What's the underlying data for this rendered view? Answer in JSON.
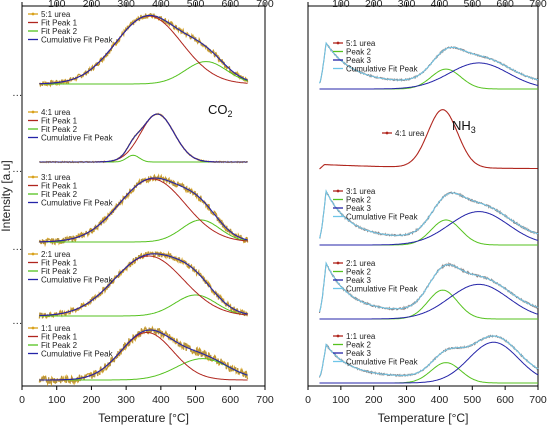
{
  "chart_data": [
    {
      "type": "line",
      "panel": "left",
      "xlabel": "Temperature [°C]",
      "ylabel": "Intensity [a.u]",
      "xlim": [
        0,
        700
      ],
      "xticks": [
        0,
        100,
        200,
        300,
        400,
        500,
        600,
        700
      ],
      "xtick_labels": [
        "0",
        "100",
        "200",
        "300",
        "400",
        "500",
        "600",
        "700"
      ],
      "annotation": {
        "main": "CO",
        "sub": "2"
      },
      "y_break_label": "…",
      "grid": false,
      "legend_position": "top-left of each subpanel",
      "colors": {
        "data": "#d9a21b",
        "peak1": "#b0261e",
        "peak2": "#55c21f",
        "cumulative": "#2424a8",
        "data_thin": "#7f7f7f"
      },
      "subpanels": [
        {
          "legend": [
            "5:1 urea",
            "Fit Peak 1",
            "Fit Peak 2",
            "Cumulative Fit Peak"
          ],
          "x_range": [
            50,
            650
          ],
          "peak1": {
            "center": 365,
            "height": 1.0,
            "width": 95
          },
          "peak2": {
            "center": 530,
            "height": 0.33,
            "width": 60
          },
          "noise": 0.04
        },
        {
          "legend": [
            "4:1 urea",
            "Fit Peak 1",
            "Fit Peak 2",
            "Cumulative Fit Peak"
          ],
          "x_range": [
            50,
            650
          ],
          "peak1": {
            "center": 390,
            "height": 1.0,
            "width": 48
          },
          "peak2": {
            "center": 320,
            "height": 0.14,
            "width": 18
          },
          "noise": 0.01
        },
        {
          "legend": [
            "3:1 urea",
            "Fit Peak 1",
            "Fit Peak 2",
            "Cumulative Fit Peak"
          ],
          "x_range": [
            50,
            650
          ],
          "peak1": {
            "center": 375,
            "height": 1.0,
            "width": 95
          },
          "peak2": {
            "center": 515,
            "height": 0.35,
            "width": 55
          },
          "noise": 0.05
        },
        {
          "legend": [
            "2:1 urea",
            "Fit Peak 1",
            "Fit Peak 2",
            "Cumulative Fit Peak"
          ],
          "x_range": [
            50,
            650
          ],
          "peak1": {
            "center": 365,
            "height": 1.0,
            "width": 100
          },
          "peak2": {
            "center": 500,
            "height": 0.35,
            "width": 60
          },
          "noise": 0.05
        },
        {
          "legend": [
            "1:1 urea",
            "Fit Peak 1",
            "Fit Peak 2",
            "Cumulative Fit Peak"
          ],
          "x_range": [
            50,
            650
          ],
          "peak1": {
            "center": 360,
            "height": 1.0,
            "width": 75
          },
          "peak2": {
            "center": 520,
            "height": 0.45,
            "width": 75
          },
          "noise": 0.08
        }
      ]
    },
    {
      "type": "line",
      "panel": "right",
      "xlabel": "Temperature [°C]",
      "ylabel": "",
      "xlim": [
        0,
        700
      ],
      "xticks": [
        0,
        100,
        200,
        300,
        400,
        500,
        600,
        700
      ],
      "xtick_labels": [
        "0",
        "100",
        "200",
        "300",
        "400",
        "500",
        "600",
        "700"
      ],
      "annotation": {
        "main": "NH",
        "sub": "3"
      },
      "grid": false,
      "legend_position": "top-left of each subpanel",
      "colors": {
        "data": "#b0261e",
        "peak2": "#55c21f",
        "peak3": "#2424a8",
        "cumulative": "#6fc6e8",
        "data_thin": "#8a8a8a"
      },
      "subpanels": [
        {
          "legend": [
            "5:1 urea",
            "Peak 2",
            "Peak 3",
            "Cumulative Fit Peak"
          ],
          "x_range": [
            35,
            700
          ],
          "peak1": {
            "center": 55,
            "height": 1.0,
            "width": 80
          },
          "peak2": {
            "center": 420,
            "height": 0.42,
            "width": 45
          },
          "peak3": {
            "center": 520,
            "height": 0.55,
            "width": 90
          }
        },
        {
          "legend": [
            "4:1 urea"
          ],
          "x_range": [
            35,
            700
          ],
          "peak1": {
            "center": 410,
            "height": 1.0,
            "width": 45
          },
          "baseline": 0.08
        },
        {
          "legend": [
            "3:1 urea",
            "Peak 2",
            "Peak 3",
            "Cumulative Fit Peak"
          ],
          "x_range": [
            35,
            700
          ],
          "peak1": {
            "center": 55,
            "height": 1.0,
            "width": 70
          },
          "peak2": {
            "center": 420,
            "height": 0.45,
            "width": 45
          },
          "peak3": {
            "center": 520,
            "height": 0.6,
            "width": 90
          }
        },
        {
          "legend": [
            "2:1 urea",
            "Peak 2",
            "Peak 3",
            "Cumulative Fit Peak"
          ],
          "x_range": [
            35,
            700
          ],
          "peak1": {
            "center": 55,
            "height": 1.0,
            "width": 70
          },
          "peak2": {
            "center": 410,
            "height": 0.5,
            "width": 45
          },
          "peak3": {
            "center": 520,
            "height": 0.6,
            "width": 90
          }
        },
        {
          "legend": [
            "1:1 urea",
            "Peak 2",
            "Peak 3",
            "Cumulative Fit Peak"
          ],
          "x_range": [
            35,
            700
          ],
          "peak1": {
            "center": 55,
            "height": 0.75,
            "width": 70
          },
          "peak2": {
            "center": 420,
            "height": 0.4,
            "width": 45
          },
          "peak3": {
            "center": 565,
            "height": 0.8,
            "width": 75
          }
        }
      ]
    }
  ]
}
